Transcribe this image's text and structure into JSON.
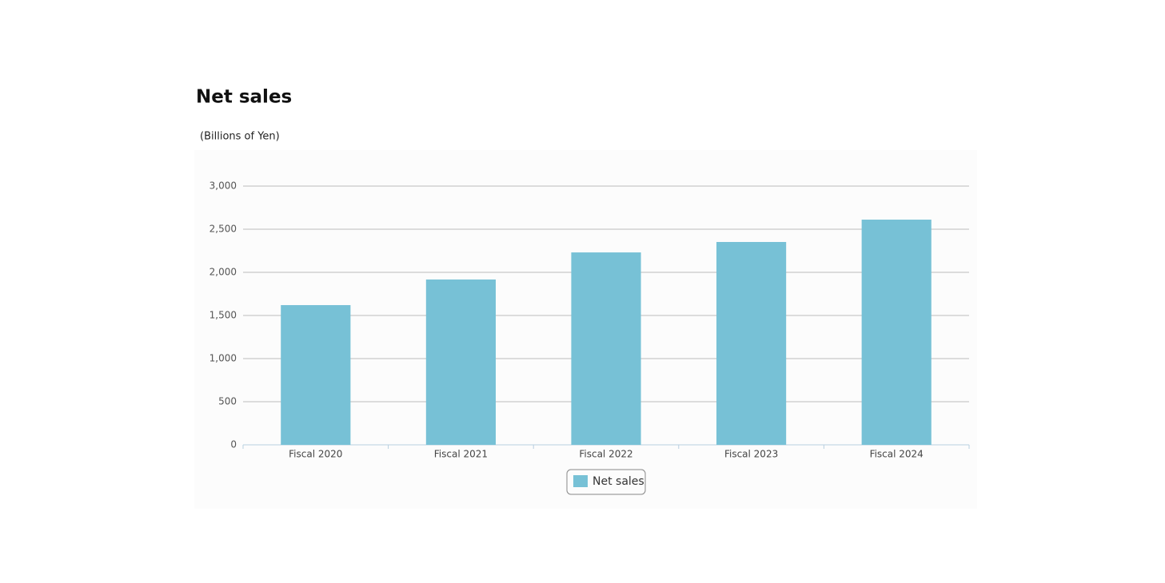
{
  "chart_data": {
    "type": "bar",
    "title": "Net sales",
    "subtitle": "(Billions of Yen)",
    "categories": [
      "Fiscal 2020",
      "Fiscal 2021",
      "Fiscal 2022",
      "Fiscal 2023",
      "Fiscal 2024"
    ],
    "series": [
      {
        "name": "Net sales",
        "color": "#77c1d6",
        "values": [
          1620,
          1917,
          2231,
          2352,
          2611
        ]
      }
    ],
    "ylim": [
      0,
      3000
    ],
    "yticks": [
      0,
      500,
      {
        "value": 1000,
        "label": "1,000"
      },
      {
        "value": 1500,
        "label": "1,500"
      },
      {
        "value": 2000,
        "label": "2,000"
      },
      {
        "value": 2500,
        "label": "2,500"
      },
      {
        "value": 3000,
        "label": "3,000"
      }
    ],
    "grid": true,
    "legend": "bottom"
  }
}
